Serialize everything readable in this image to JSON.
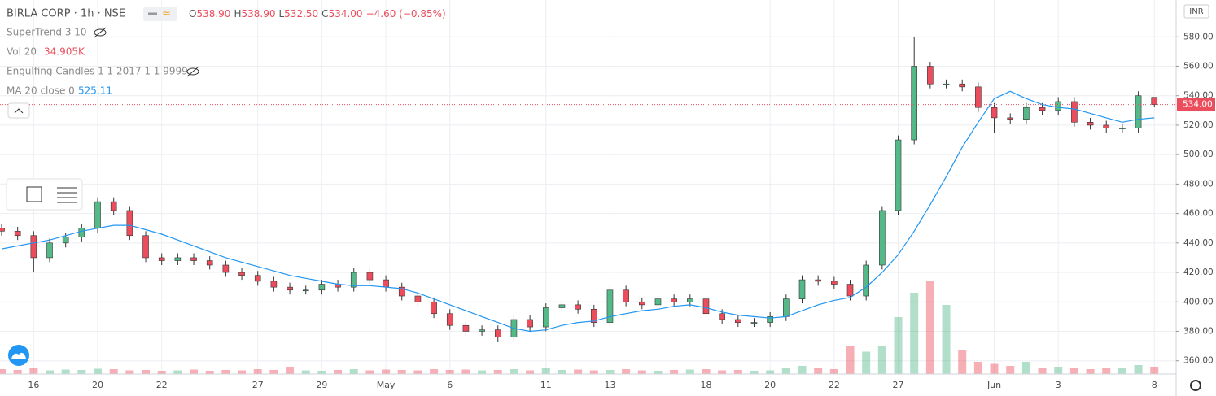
{
  "header": {
    "symbol": "BIRLA CORP · 1h · NSE",
    "ohlc": [
      {
        "label": "O",
        "value": "538.90"
      },
      {
        "label": "H",
        "value": "538.90"
      },
      {
        "label": "L",
        "value": "532.50"
      },
      {
        "label": "C",
        "value": "534.00"
      }
    ],
    "change": "−4.60 (−0.85%)",
    "indicators": [
      {
        "name": "SuperTrend 3 10"
      },
      {
        "name": "Vol 20",
        "value": "34.905K"
      },
      {
        "name": "Engulfing Candles 1 1 2017 1 1 9999"
      },
      {
        "name": "MA 20 close 0",
        "value": "525.11"
      }
    ],
    "currency": "INR"
  },
  "chart_data": {
    "type": "candlestick",
    "categories": [
      null,
      null,
      "16",
      null,
      null,
      null,
      "20",
      null,
      null,
      null,
      "22",
      null,
      null,
      null,
      null,
      null,
      "27",
      null,
      null,
      null,
      "29",
      null,
      null,
      null,
      "May",
      null,
      null,
      null,
      "6",
      null,
      null,
      null,
      null,
      null,
      "11",
      null,
      null,
      null,
      "13",
      null,
      null,
      null,
      null,
      null,
      "18",
      null,
      null,
      null,
      "20",
      null,
      null,
      null,
      "22",
      null,
      null,
      null,
      "27",
      null,
      null,
      null,
      null,
      null,
      "Jun",
      null,
      null,
      null,
      "3",
      null,
      null,
      null,
      null,
      null,
      "8"
    ],
    "open": [
      450,
      448,
      445,
      430,
      440,
      444,
      450,
      468,
      462,
      445,
      430,
      428,
      430,
      428,
      425,
      420,
      418,
      414,
      410,
      408,
      408,
      412,
      410,
      420,
      415,
      410,
      404,
      400,
      392,
      384,
      380,
      381,
      376,
      388,
      383,
      396,
      398,
      395,
      386,
      408,
      400,
      398,
      402,
      400,
      402,
      392,
      388,
      386,
      386,
      390,
      402,
      415,
      414,
      412,
      404,
      425,
      462,
      510,
      560,
      548,
      548,
      546,
      532,
      525,
      524,
      532,
      530,
      536,
      522,
      520,
      518,
      518,
      538.9
    ],
    "high": [
      453,
      451,
      448,
      443,
      447,
      453,
      471,
      471,
      465,
      448,
      433,
      433,
      433,
      431,
      428,
      423,
      421,
      417,
      413,
      411,
      415,
      415,
      423,
      423,
      418,
      413,
      407,
      403,
      395,
      387,
      384,
      384,
      391,
      391,
      399,
      401,
      401,
      398,
      411,
      411,
      403,
      405,
      405,
      405,
      405,
      395,
      391,
      389,
      393,
      405,
      418,
      418,
      417,
      415,
      428,
      465,
      513,
      580,
      563,
      551,
      551,
      549,
      535,
      528,
      535,
      535,
      539,
      539,
      525,
      523,
      521,
      543,
      538.9
    ],
    "low": [
      445,
      442,
      420,
      427,
      437,
      441,
      447,
      459,
      442,
      427,
      425,
      425,
      425,
      422,
      417,
      415,
      411,
      407,
      405,
      405,
      405,
      407,
      407,
      412,
      407,
      401,
      397,
      389,
      381,
      377,
      377,
      373,
      373,
      380,
      380,
      393,
      392,
      383,
      383,
      397,
      395,
      395,
      397,
      397,
      389,
      385,
      383,
      383,
      383,
      387,
      399,
      411,
      409,
      401,
      401,
      422,
      459,
      507,
      545,
      545,
      543,
      529,
      515,
      521,
      521,
      527,
      527,
      519,
      517,
      515,
      515,
      515,
      532.5
    ],
    "close": [
      448,
      445,
      430,
      440,
      444,
      450,
      468,
      462,
      445,
      430,
      428,
      430,
      428,
      425,
      420,
      418,
      414,
      410,
      408,
      408,
      412,
      410,
      420,
      415,
      410,
      404,
      400,
      392,
      384,
      380,
      381,
      376,
      388,
      383,
      396,
      398,
      395,
      386,
      408,
      400,
      398,
      402,
      400,
      402,
      392,
      388,
      386,
      386,
      390,
      402,
      415,
      414,
      412,
      404,
      425,
      462,
      510,
      560,
      548,
      548,
      546,
      532,
      525,
      524,
      532,
      530,
      536,
      522,
      520,
      518,
      518,
      540,
      534
    ],
    "volume": [
      12,
      10,
      14,
      9,
      11,
      10,
      13,
      12,
      9,
      10,
      8,
      9,
      11,
      8,
      10,
      9,
      12,
      10,
      18,
      9,
      8,
      10,
      12,
      9,
      11,
      10,
      9,
      12,
      10,
      11,
      9,
      10,
      12,
      9,
      14,
      10,
      11,
      9,
      10,
      12,
      9,
      8,
      10,
      11,
      12,
      9,
      10,
      8,
      9,
      15,
      20,
      16,
      12,
      70,
      55,
      70,
      140,
      200,
      230,
      170,
      60,
      30,
      25,
      20,
      30,
      15,
      18,
      14,
      12,
      16,
      14,
      22,
      18
    ],
    "ma": {
      "name": "MA 20 close 0",
      "color": "#2196f3",
      "values": [
        436,
        438,
        440,
        442,
        445,
        448,
        450,
        452,
        452,
        449,
        446,
        442,
        438,
        434,
        430,
        427,
        424,
        421,
        418,
        416,
        414,
        412,
        411,
        411,
        410,
        409,
        406,
        402,
        398,
        394,
        390,
        386,
        382,
        380,
        381,
        384,
        386,
        387,
        390,
        392,
        394,
        395,
        397,
        398,
        396,
        393,
        391,
        390,
        389,
        390,
        394,
        398,
        401,
        403,
        410,
        420,
        432,
        448,
        466,
        485,
        505,
        522,
        538,
        543,
        538,
        534,
        532,
        531,
        528,
        525,
        522,
        524,
        525
      ]
    },
    "up_color": "#53b987",
    "down_color": "#eb4d5c",
    "ylim": [
      351,
      605
    ],
    "yticks": [
      {
        "value": 360,
        "label": "360.00"
      },
      {
        "value": 380,
        "label": "380.00"
      },
      {
        "value": 400,
        "label": "400.00"
      },
      {
        "value": 420,
        "label": "420.00"
      },
      {
        "value": 440,
        "label": "440.00"
      },
      {
        "value": 460,
        "label": "460.00"
      },
      {
        "value": 480,
        "label": "480.00"
      },
      {
        "value": 500,
        "label": "500.00"
      },
      {
        "value": 520,
        "label": "520.00"
      },
      {
        "value": 540,
        "label": "540.00"
      },
      {
        "value": 560,
        "label": "560.00"
      },
      {
        "value": 580,
        "label": "580.00"
      }
    ],
    "last_price": {
      "value": 534,
      "label": "534.00"
    },
    "grid": true
  }
}
